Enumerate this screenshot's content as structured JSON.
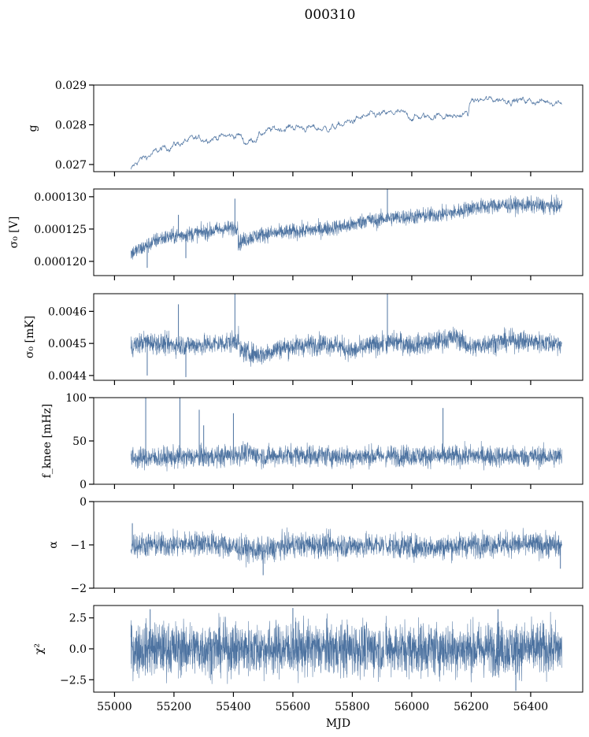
{
  "figure": {
    "suptitle": "000310"
  },
  "chart_data": [
    {
      "type": "line",
      "panel": "gain",
      "ylabel": "g",
      "xlabel": "",
      "ylim": [
        0.02682,
        0.029
      ],
      "xlim": [
        54930,
        56575
      ],
      "yticks": [
        0.027,
        0.028,
        0.029
      ],
      "ytick_labels": [
        "0.027",
        "0.028",
        "0.029"
      ],
      "show_x_tick_labels": false,
      "color": "#4c72a0",
      "style": "thin",
      "segments": [
        [
          55055,
          56505
        ]
      ],
      "x": [
        55055,
        55080,
        55110,
        55150,
        55200,
        55250,
        55300,
        55350,
        55400,
        55420,
        55440,
        55470,
        55500,
        55550,
        55600,
        55650,
        55700,
        55750,
        55800,
        55850,
        55900,
        55950,
        56000,
        56050,
        56100,
        56150,
        56190,
        56200,
        56250,
        56300,
        56350,
        56400,
        56450,
        56505
      ],
      "y": [
        0.02685,
        0.0271,
        0.0272,
        0.02735,
        0.0275,
        0.0276,
        0.02765,
        0.0277,
        0.02772,
        0.02775,
        0.02755,
        0.02765,
        0.0278,
        0.0279,
        0.02795,
        0.02792,
        0.0279,
        0.02795,
        0.0281,
        0.0282,
        0.02825,
        0.0283,
        0.0282,
        0.0282,
        0.02825,
        0.0282,
        0.0283,
        0.0286,
        0.02862,
        0.02865,
        0.02862,
        0.0286,
        0.02858,
        0.0286
      ],
      "noise": 5e-05,
      "n": 1100
    },
    {
      "type": "line",
      "panel": "sigma0_volts",
      "ylabel": "σ₀ [V]",
      "xlabel": "",
      "ylim": [
        0.0001178,
        0.0001312
      ],
      "xlim": [
        54930,
        56575
      ],
      "yticks": [
        0.00012,
        0.000125,
        0.00013
      ],
      "ytick_labels": [
        "0.000120",
        "0.000125",
        "0.000130"
      ],
      "show_x_tick_labels": false,
      "color": "#4c72a0",
      "style": "dense",
      "segments": [
        [
          55055,
          56505
        ]
      ],
      "x": [
        55055,
        55100,
        55150,
        55200,
        55250,
        55300,
        55350,
        55400,
        55415,
        55416,
        55450,
        55500,
        55600,
        55700,
        55800,
        55850,
        55880,
        55900,
        55950,
        56000,
        56100,
        56150,
        56200,
        56300,
        56400,
        56505
      ],
      "y": [
        0.0001212,
        0.0001222,
        0.0001235,
        0.0001239,
        0.0001242,
        0.0001245,
        0.0001249,
        0.0001252,
        0.0001255,
        0.0001228,
        0.0001236,
        0.0001242,
        0.0001246,
        0.000125,
        0.0001256,
        0.0001265,
        0.0001262,
        0.0001266,
        0.0001268,
        0.0001269,
        0.0001273,
        0.0001276,
        0.0001283,
        0.0001287,
        0.0001287,
        0.0001285
      ],
      "noise": 6e-07,
      "n": 2200,
      "spikes": [
        [
          55215,
          0.0001272
        ],
        [
          55405,
          0.0001297
        ],
        [
          55918,
          0.0001312
        ],
        [
          55240,
          0.0001205
        ],
        [
          55110,
          0.000119
        ]
      ]
    },
    {
      "type": "line",
      "panel": "sigma0_mK",
      "ylabel": "σ₀ [mK]",
      "xlabel": "",
      "ylim": [
        0.004385,
        0.004655
      ],
      "xlim": [
        54930,
        56575
      ],
      "yticks": [
        0.0044,
        0.0045,
        0.0046
      ],
      "ytick_labels": [
        "0.0044",
        "0.0045",
        "0.0046"
      ],
      "show_x_tick_labels": false,
      "color": "#4c72a0",
      "style": "dense",
      "segments": [
        [
          55055,
          55906
        ],
        [
          55912,
          56505
        ]
      ],
      "x": [
        55055,
        55100,
        55200,
        55300,
        55400,
        55418,
        55420,
        55450,
        55500,
        55550,
        55600,
        55700,
        55750,
        55800,
        55850,
        55900,
        55950,
        56000,
        56050,
        56100,
        56150,
        56200,
        56250,
        56300,
        56350,
        56400,
        56505
      ],
      "y": [
        0.00449,
        0.004505,
        0.004495,
        0.004495,
        0.004505,
        0.004515,
        0.00448,
        0.00447,
        0.004465,
        0.004485,
        0.00449,
        0.0045,
        0.004495,
        0.004475,
        0.00449,
        0.0045,
        0.004505,
        0.004495,
        0.0045,
        0.00451,
        0.00452,
        0.004485,
        0.0045,
        0.004505,
        0.00451,
        0.004505,
        0.0045
      ],
      "noise": 1.6e-05,
      "n": 2200,
      "spikes": [
        [
          55215,
          0.004622
        ],
        [
          55405,
          0.004655
        ],
        [
          55918,
          0.004655
        ],
        [
          55240,
          0.004395
        ],
        [
          55110,
          0.0044
        ]
      ]
    },
    {
      "type": "line",
      "panel": "fknee",
      "ylabel": "f_knee [mHz]",
      "xlabel": "",
      "ylim": [
        0,
        100
      ],
      "xlim": [
        54930,
        56575
      ],
      "yticks": [
        0,
        50,
        100
      ],
      "ytick_labels": [
        "0",
        "50",
        "100"
      ],
      "show_x_tick_labels": false,
      "color": "#4c72a0",
      "style": "dense",
      "segments": [
        [
          55055,
          55906
        ],
        [
          55912,
          56505
        ]
      ],
      "x": [
        55055,
        55200,
        55350,
        55400,
        55450,
        55500,
        55600,
        55700,
        55800,
        55900,
        56000,
        56100,
        56200,
        56300,
        56400,
        56505
      ],
      "y": [
        30,
        31,
        32,
        34,
        36,
        32,
        34,
        33,
        32,
        33,
        33,
        32,
        33,
        32,
        32,
        32
      ],
      "noise": 6,
      "n": 2200,
      "spikes": [
        [
          55105,
          100
        ],
        [
          55220,
          100
        ],
        [
          55285,
          86
        ],
        [
          55400,
          82
        ],
        [
          56105,
          88
        ],
        [
          55300,
          68
        ]
      ]
    },
    {
      "type": "line",
      "panel": "alpha",
      "ylabel": "α",
      "xlabel": "",
      "ylim": [
        -2,
        0
      ],
      "xlim": [
        54930,
        56575
      ],
      "yticks": [
        -2,
        -1,
        0
      ],
      "ytick_labels": [
        "−2",
        "−1",
        "0"
      ],
      "show_x_tick_labels": false,
      "color": "#4c72a0",
      "style": "dense",
      "segments": [
        [
          55055,
          55906
        ],
        [
          55912,
          56505
        ]
      ],
      "x": [
        55055,
        55200,
        55300,
        55400,
        55450,
        55500,
        55550,
        55600,
        55700,
        55800,
        55900,
        56000,
        56100,
        56200,
        56300,
        56400,
        56505
      ],
      "y": [
        -1.0,
        -1.0,
        -0.95,
        -1.05,
        -1.1,
        -1.15,
        -1.05,
        -1.0,
        -1.0,
        -1.02,
        -1.0,
        -1.05,
        -1.05,
        -1.0,
        -0.98,
        -1.0,
        -1.02
      ],
      "noise": 0.14,
      "n": 2200,
      "spikes": [
        [
          55060,
          -0.5
        ],
        [
          55500,
          -1.7
        ],
        [
          56500,
          -1.55
        ]
      ]
    },
    {
      "type": "line",
      "panel": "chi2",
      "ylabel": "χ²",
      "xlabel": "MJD",
      "ylim": [
        -3.5,
        3.5
      ],
      "xlim": [
        54930,
        56575
      ],
      "yticks": [
        -2.5,
        0,
        2.5
      ],
      "ytick_labels": [
        "−2.5",
        "0.0",
        "2.5"
      ],
      "xticks": [
        55000,
        55200,
        55400,
        55600,
        55800,
        56000,
        56200,
        56400
      ],
      "xtick_labels": [
        "55000",
        "55200",
        "55400",
        "55600",
        "55800",
        "56000",
        "56200",
        "56400"
      ],
      "show_x_tick_labels": true,
      "color": "#4c72a0",
      "style": "dense",
      "segments": [
        [
          55055,
          55906
        ],
        [
          55912,
          56505
        ]
      ],
      "x": [
        55055,
        56505
      ],
      "y": [
        0,
        0
      ],
      "noise": 1.05,
      "n": 2600,
      "spikes": [
        [
          55120,
          3.2
        ],
        [
          55600,
          3.3
        ],
        [
          56290,
          3.2
        ],
        [
          56350,
          -3.4
        ]
      ]
    }
  ]
}
